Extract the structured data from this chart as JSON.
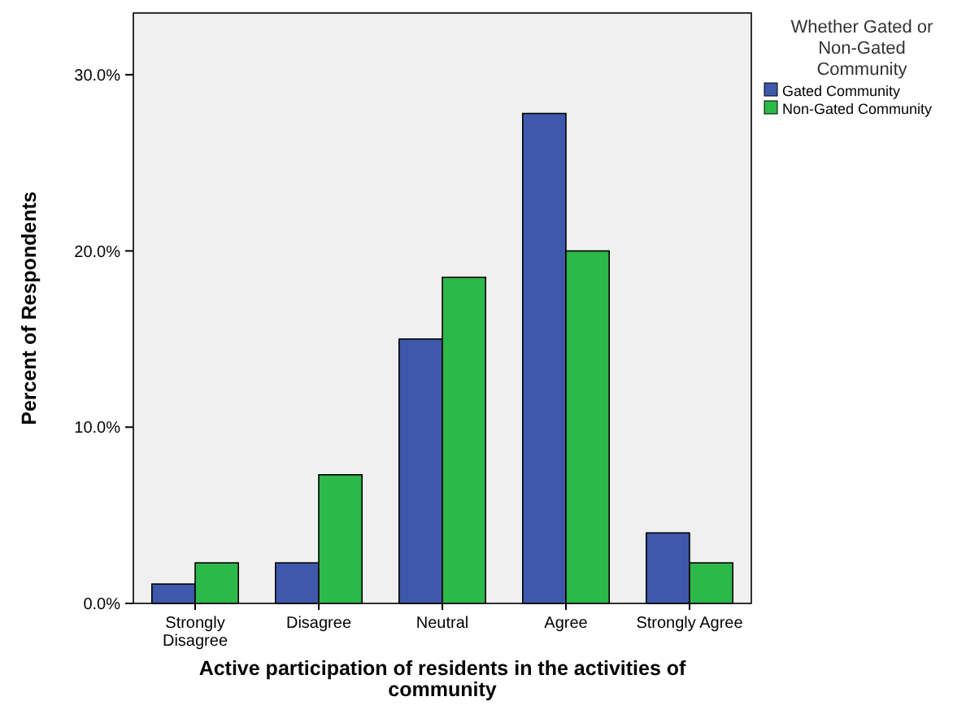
{
  "chart_data": {
    "type": "bar",
    "xlabel": "Active participation of residents in the activities of community",
    "ylabel": "Percent of Respondents",
    "legend_title": "Whether Gated or Non-Gated Community",
    "legend": "top right",
    "categories": [
      "Strongly Disagree",
      "Disagree",
      "Neutral",
      "Agree",
      "Strongly Agree"
    ],
    "series": [
      {
        "name": "Gated Community",
        "color": "#3e58ac",
        "values": [
          1.1,
          2.3,
          15.0,
          27.8,
          4.0
        ]
      },
      {
        "name": "Non-Gated Community",
        "color": "#2db84a",
        "values": [
          2.3,
          7.3,
          18.5,
          20.0,
          2.3
        ]
      }
    ],
    "ylim": [
      0,
      33.5
    ],
    "yticks": [
      {
        "value": 0,
        "label": "0.0%"
      },
      {
        "value": 10,
        "label": "10.0%"
      },
      {
        "value": 20,
        "label": "20.0%"
      },
      {
        "value": 30,
        "label": "30.0%"
      }
    ]
  }
}
